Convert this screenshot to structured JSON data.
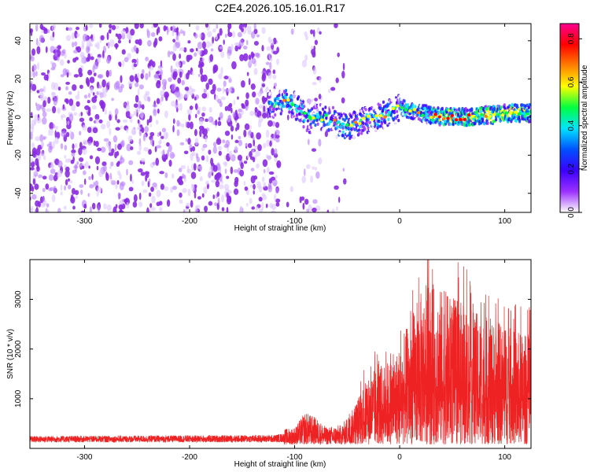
{
  "title": "C2E4.2026.105.16.01.R17",
  "chart_data": [
    {
      "type": "heatmap",
      "name": "spectrogram",
      "xlabel": "Height of straight line (km)",
      "ylabel": "Frequency (Hz)",
      "xlim": [
        -352,
        125
      ],
      "ylim": [
        -50,
        49
      ],
      "xticks": [
        -300,
        -200,
        -100,
        0,
        100
      ],
      "yticks": [
        -40,
        -20,
        0,
        20,
        40
      ],
      "colorbar": {
        "label": "Normalized spectral amplitude",
        "range": [
          0,
          0.87
        ],
        "ticks": [
          "0.0",
          "0.2",
          "0.4",
          "0.6",
          "0.8"
        ],
        "colors": [
          "#ffffff",
          "#9b30ff",
          "#3a00ff",
          "#0050ff",
          "#00e5ff",
          "#00ff40",
          "#ffff00",
          "#ff8000",
          "#ff0000",
          "#ff0090"
        ]
      },
      "ridge_center": [
        [
          -120,
          7
        ],
        [
          -110,
          9
        ],
        [
          -100,
          6
        ],
        [
          -95,
          4
        ],
        [
          -90,
          1
        ],
        [
          -85,
          -2
        ],
        [
          -80,
          -1
        ],
        [
          -70,
          0
        ],
        [
          -60,
          -3
        ],
        [
          -50,
          -5
        ],
        [
          -40,
          -3
        ],
        [
          -30,
          -1
        ],
        [
          -20,
          0
        ],
        [
          -10,
          2
        ],
        [
          0,
          5
        ],
        [
          10,
          4
        ],
        [
          20,
          2
        ],
        [
          30,
          1
        ],
        [
          40,
          0
        ],
        [
          50,
          0
        ],
        [
          60,
          0
        ],
        [
          70,
          0
        ],
        [
          80,
          1
        ],
        [
          90,
          1
        ],
        [
          100,
          2
        ],
        [
          110,
          2
        ],
        [
          125,
          2
        ]
      ]
    },
    {
      "type": "line",
      "name": "snr",
      "xlabel": "Height of straight line (km)",
      "ylabel": "SNR (10 * v/v)",
      "xlim": [
        -352,
        125
      ],
      "ylim": [
        0,
        3800
      ],
      "xticks": [
        -300,
        -200,
        -100,
        0,
        100
      ],
      "yticks": [
        1000,
        2000,
        3000
      ],
      "color": "#ee2222",
      "envelope": [
        [
          -352,
          250
        ],
        [
          -120,
          270
        ],
        [
          -100,
          350
        ],
        [
          -90,
          650
        ],
        [
          -80,
          550
        ],
        [
          -70,
          350
        ],
        [
          -55,
          400
        ],
        [
          -45,
          700
        ],
        [
          -35,
          1200
        ],
        [
          -25,
          1500
        ],
        [
          -10,
          1700
        ],
        [
          0,
          2000
        ],
        [
          15,
          2800
        ],
        [
          25,
          3300
        ],
        [
          35,
          3200
        ],
        [
          50,
          3000
        ],
        [
          70,
          2700
        ],
        [
          90,
          2500
        ],
        [
          110,
          2300
        ],
        [
          125,
          2200
        ]
      ]
    }
  ]
}
